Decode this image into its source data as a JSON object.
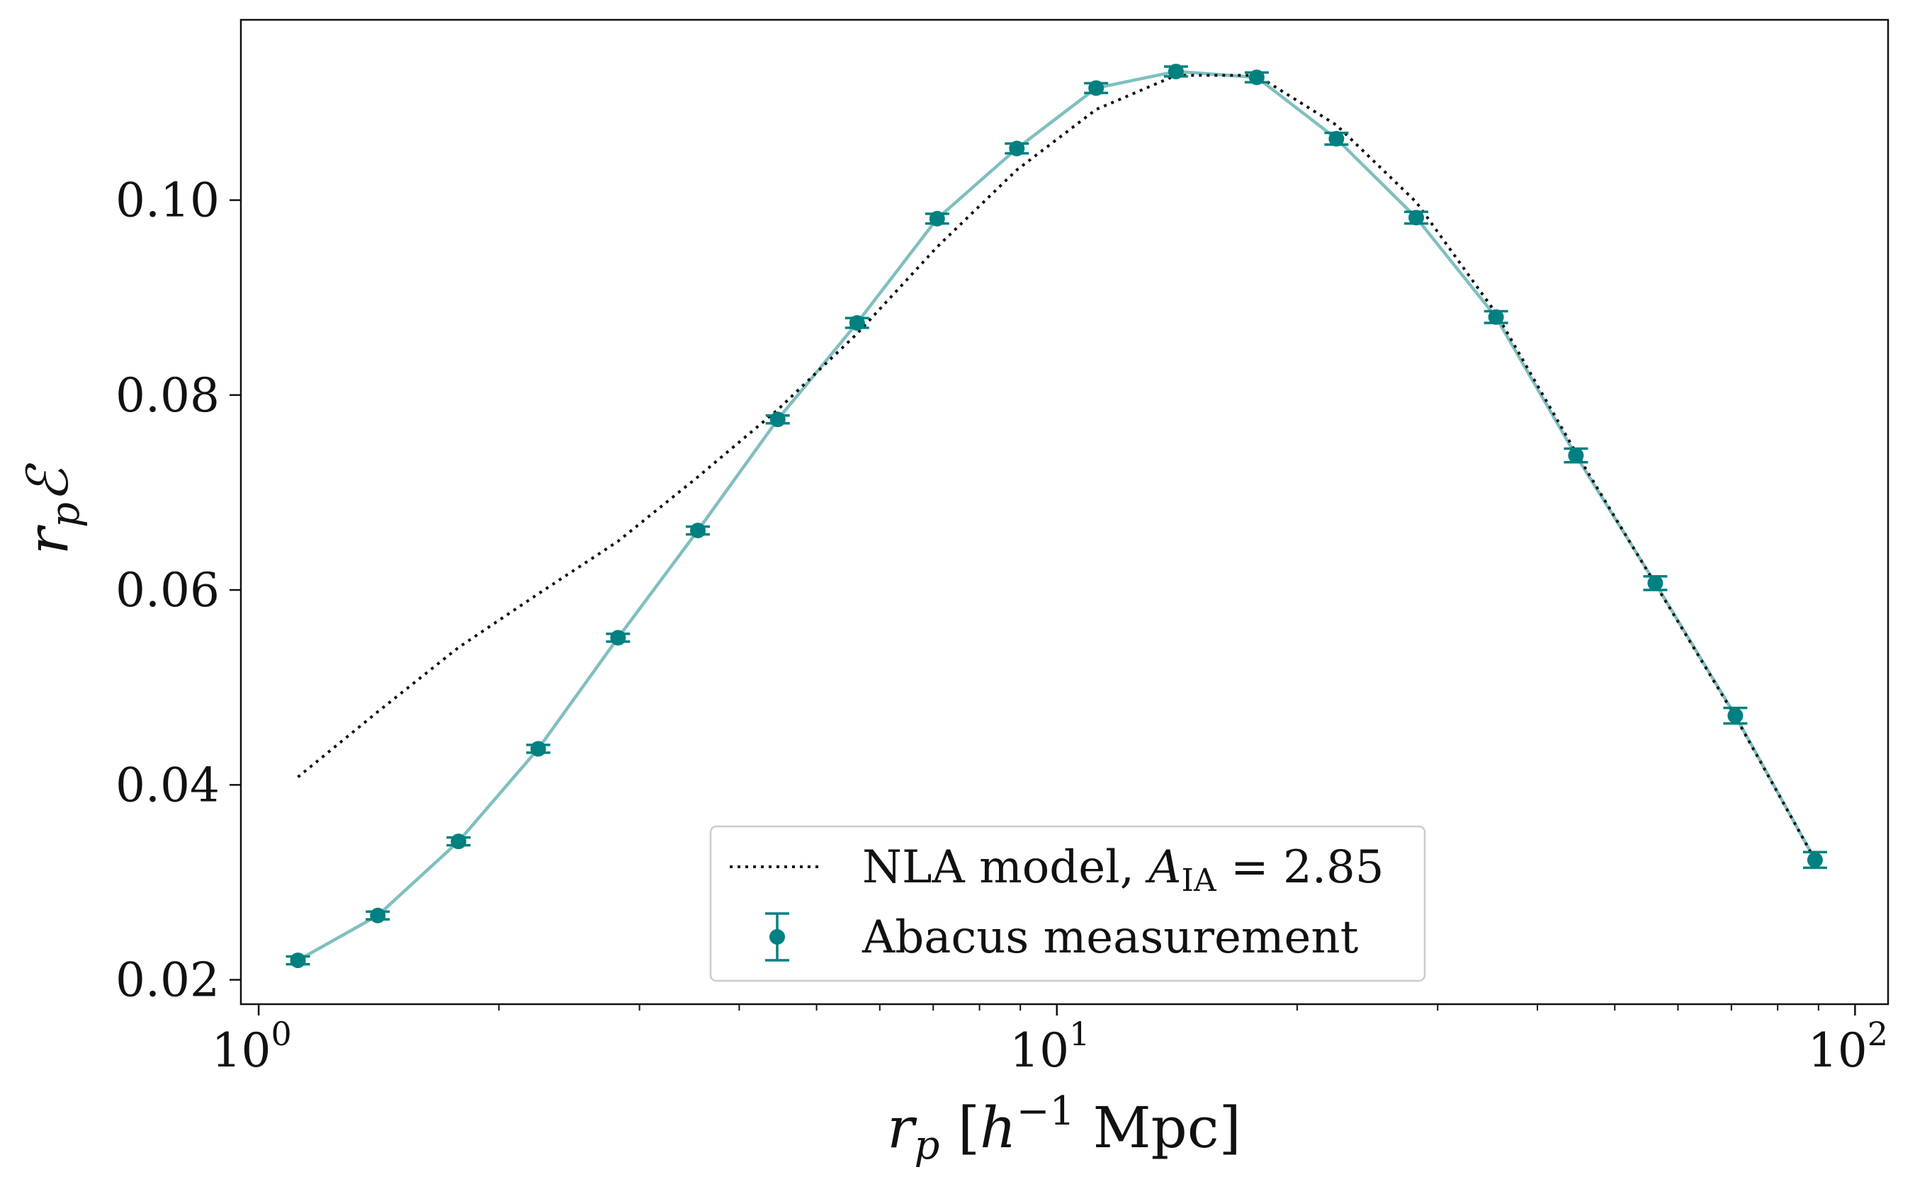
{
  "chart_data": {
    "type": "line",
    "x_scale": "log",
    "xlim": [
      0.95,
      110
    ],
    "ylim": [
      0.0175,
      0.1185
    ],
    "xlabel": {
      "var": "r",
      "sub": "p",
      "bracket_open": "[",
      "unit_var": "h",
      "unit_exp": "−1",
      "unit": "Mpc",
      "bracket_close": "]"
    },
    "ylabel": {
      "var": "r",
      "sub": "p",
      "symbol": "ℰ"
    },
    "x_ticks": [
      {
        "value": 1,
        "base": "10",
        "exp": "0"
      },
      {
        "value": 10,
        "base": "10",
        "exp": "1"
      },
      {
        "value": 100,
        "base": "10",
        "exp": "2"
      }
    ],
    "y_ticks": [
      {
        "value": 0.02,
        "label": "0.02"
      },
      {
        "value": 0.04,
        "label": "0.04"
      },
      {
        "value": 0.06,
        "label": "0.06"
      },
      {
        "value": 0.08,
        "label": "0.08"
      },
      {
        "value": 0.1,
        "label": "0.10"
      }
    ],
    "grid": false,
    "legend_position": "bottom-center",
    "colors": {
      "measurement": "#008080",
      "measurement_line": "#80bfbf",
      "model": "#111111"
    },
    "series": [
      {
        "name": "NLA model, A_IA = 2.85",
        "legend": {
          "text_before": "NLA model, ",
          "var": "A",
          "sub": "IA",
          "text_after": " = 2.85"
        },
        "style": "dotted",
        "x": [
          1.12,
          1.41,
          1.78,
          2.24,
          2.82,
          3.55,
          4.47,
          5.62,
          7.08,
          8.91,
          11.2,
          14.1,
          17.8,
          22.4,
          28.2,
          35.5,
          44.7,
          56.2,
          70.8,
          89.1
        ],
        "y": [
          0.0408,
          0.0475,
          0.0541,
          0.0596,
          0.065,
          0.0716,
          0.0785,
          0.0863,
          0.0952,
          0.1031,
          0.1093,
          0.1128,
          0.1128,
          0.1077,
          0.0998,
          0.0884,
          0.0741,
          0.0606,
          0.047,
          0.0323
        ]
      },
      {
        "name": "Abacus measurement",
        "legend": {
          "text": "Abacus measurement"
        },
        "style": "errorbar",
        "x": [
          1.12,
          1.41,
          1.78,
          2.24,
          2.82,
          3.55,
          4.47,
          5.62,
          7.08,
          8.91,
          11.2,
          14.1,
          17.8,
          22.4,
          28.2,
          35.5,
          44.7,
          56.2,
          70.8,
          89.1
        ],
        "y": [
          0.022,
          0.0266,
          0.0342,
          0.0437,
          0.0551,
          0.0661,
          0.0775,
          0.0874,
          0.0981,
          0.1053,
          0.1115,
          0.1132,
          0.1126,
          0.1063,
          0.0982,
          0.088,
          0.0738,
          0.0607,
          0.0471,
          0.0323
        ],
        "yerr": [
          0.0004,
          0.0004,
          0.0004,
          0.0004,
          0.0004,
          0.0004,
          0.0004,
          0.0005,
          0.0005,
          0.0005,
          0.0005,
          0.0005,
          0.0005,
          0.0006,
          0.0006,
          0.0006,
          0.0007,
          0.0007,
          0.0008,
          0.0008
        ]
      }
    ]
  }
}
